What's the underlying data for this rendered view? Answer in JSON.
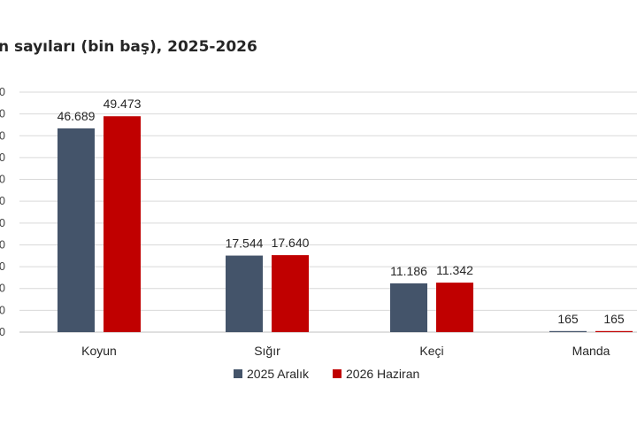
{
  "chart_data": {
    "type": "bar",
    "title": "n sayıları (bin baş), 2025-2026",
    "categories": [
      "Koyun",
      "Sığır",
      "Keçi",
      "Manda"
    ],
    "series": [
      {
        "name": "2025 Aralık",
        "values": [
          46689,
          17544,
          11186,
          165
        ],
        "labels": [
          "46.689",
          "17.544",
          "11.186",
          "165"
        ],
        "color": "#44546a"
      },
      {
        "name": "2026 Haziran",
        "values": [
          49473,
          17640,
          11342,
          165
        ],
        "labels": [
          "49.473",
          "17.640",
          "11.342",
          "165"
        ],
        "color": "#c00000"
      }
    ],
    "ylim": [
      0,
      55000
    ],
    "ytick_count": 12,
    "ytick_labels": [
      "0",
      "0",
      "0",
      "0",
      "0",
      "0",
      "0",
      "0",
      "0",
      "0",
      "0",
      "0"
    ],
    "grid": true,
    "legend": "bottom"
  }
}
